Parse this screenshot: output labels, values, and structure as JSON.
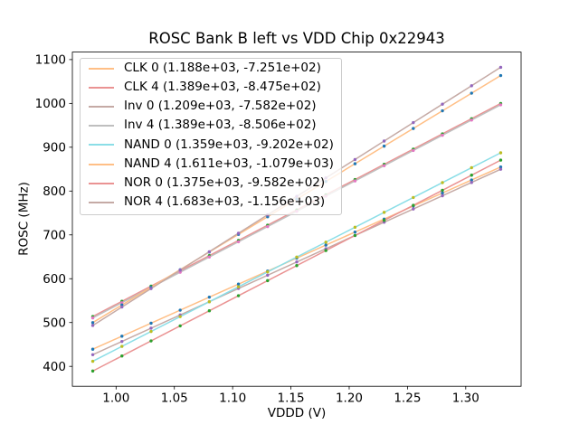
{
  "chart_data": {
    "type": "scatter",
    "fit": "linear",
    "title": "ROSC Bank B left vs VDD Chip 0x22943",
    "xlabel": "VDDD (V)",
    "ylabel": "ROSC (MHz)",
    "xlim": [
      0.9625,
      1.3475
    ],
    "ylim": [
      354.6,
      1117.1
    ],
    "xticks": [
      1.0,
      1.05,
      1.1,
      1.15,
      1.2,
      1.25,
      1.3
    ],
    "xtick_labels": [
      "1.00",
      "1.05",
      "1.10",
      "1.15",
      "1.20",
      "1.25",
      "1.30"
    ],
    "yticks": [
      400,
      500,
      600,
      700,
      800,
      900,
      1000,
      1100
    ],
    "ytick_labels": [
      "400",
      "500",
      "600",
      "700",
      "800",
      "900",
      "1000",
      "1100"
    ],
    "grid": false,
    "legend_position": "upper left",
    "x": [
      0.98,
      1.005,
      1.03,
      1.055,
      1.08,
      1.105,
      1.13,
      1.155,
      1.18,
      1.205,
      1.23,
      1.255,
      1.28,
      1.305,
      1.33
    ],
    "series": [
      {
        "name": "CLK 0",
        "legend_label": "CLK 0 (1.188e+03, -7.251e+02)",
        "fit_slope": 1188.0,
        "fit_intercept": -725.1,
        "line_color": "#ffbf86",
        "marker_color": "#1f77b4",
        "values": [
          439.1,
          468.8,
          498.5,
          528.2,
          557.9,
          587.6,
          617.3,
          647.0,
          676.7,
          706.4,
          736.1,
          765.8,
          795.5,
          825.2,
          854.9
        ]
      },
      {
        "name": "CLK 4",
        "legend_label": "CLK 4 (1.389e+03, -8.475e+02)",
        "fit_slope": 1389.0,
        "fit_intercept": -847.5,
        "line_color": "#ea9393",
        "marker_color": "#2ca02c",
        "values": [
          513.7,
          548.4,
          583.2,
          617.9,
          652.6,
          687.3,
          722.1,
          756.8,
          791.5,
          826.2,
          861.0,
          895.7,
          930.4,
          965.1,
          999.9
        ]
      },
      {
        "name": "Inv 0",
        "legend_label": "Inv 0 (1.209e+03, -7.582e+02)",
        "fit_slope": 1209.0,
        "fit_intercept": -758.2,
        "line_color": "#c5aaa5",
        "marker_color": "#9467bd",
        "values": [
          426.6,
          456.8,
          487.1,
          517.3,
          547.5,
          577.7,
          608.0,
          638.2,
          668.4,
          698.6,
          728.9,
          759.1,
          789.3,
          819.5,
          849.8
        ]
      },
      {
        "name": "Inv 4",
        "legend_label": "Inv 4 (1.389e+03, -8.506e+02)",
        "fit_slope": 1389.0,
        "fit_intercept": -850.6,
        "line_color": "#bfbfbf",
        "marker_color": "#e377c2",
        "values": [
          510.6,
          545.3,
          580.1,
          614.8,
          649.5,
          684.2,
          719.0,
          753.7,
          788.4,
          823.1,
          857.9,
          892.6,
          927.3,
          962.0,
          996.8
        ]
      },
      {
        "name": "NAND 0",
        "legend_label": "NAND 0 (1.359e+03, -9.202e+02)",
        "fit_slope": 1359.0,
        "fit_intercept": -920.2,
        "line_color": "#8bdee7",
        "marker_color": "#bcbd22",
        "values": [
          411.6,
          445.6,
          479.6,
          513.5,
          547.5,
          581.5,
          615.5,
          649.4,
          683.4,
          717.4,
          751.4,
          785.3,
          819.3,
          853.3,
          887.3
        ]
      },
      {
        "name": "NAND 4",
        "legend_label": "NAND 4 (1.611e+03, -1.079e+03)",
        "fit_slope": 1611.0,
        "fit_intercept": -1079.0,
        "line_color": "#ffbf86",
        "marker_color": "#1f77b4",
        "values": [
          499.8,
          540.1,
          580.3,
          620.6,
          660.9,
          701.2,
          741.4,
          781.7,
          822.0,
          862.3,
          902.5,
          942.8,
          983.1,
          1023.4,
          1063.6
        ]
      },
      {
        "name": "NOR 0",
        "legend_label": "NOR 0 (1.375e+03, -9.582e+02)",
        "fit_slope": 1375.0,
        "fit_intercept": -958.2,
        "line_color": "#ea9393",
        "marker_color": "#2ca02c",
        "values": [
          389.3,
          423.7,
          458.1,
          492.4,
          526.8,
          561.2,
          595.6,
          629.9,
          664.3,
          698.7,
          733.1,
          767.4,
          801.8,
          836.2,
          870.6
        ]
      },
      {
        "name": "NOR 4",
        "legend_label": "NOR 4 (1.683e+03, -1.156e+03)",
        "fit_slope": 1683.0,
        "fit_intercept": -1156.0,
        "line_color": "#c5aaa5",
        "marker_color": "#9467bd",
        "values": [
          493.3,
          535.4,
          577.5,
          619.6,
          661.6,
          703.7,
          745.8,
          787.9,
          829.9,
          872.0,
          914.1,
          956.2,
          998.2,
          1040.3,
          1082.3
        ]
      }
    ]
  }
}
